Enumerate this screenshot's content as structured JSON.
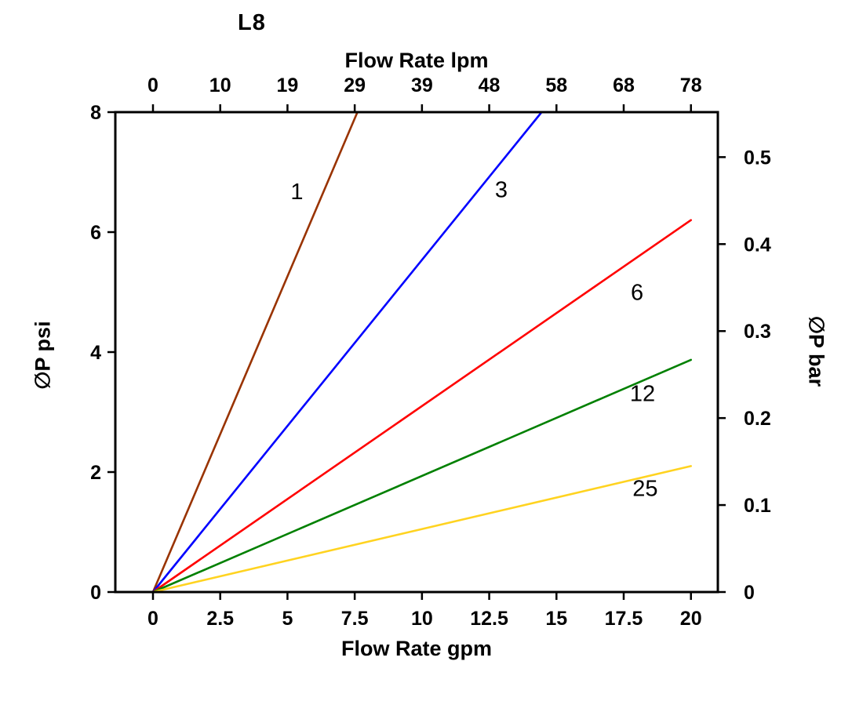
{
  "chart_data": {
    "type": "line",
    "title": "L8",
    "xlabel_top": "Flow Rate lpm",
    "xlabel_bottom": "Flow Rate gpm",
    "ylabel_left": "∅P psi",
    "ylabel_right": "∅P bar",
    "xlim": [
      -1.4,
      21.0
    ],
    "ylim": [
      0,
      8
    ],
    "grid": false,
    "legend": "none (inline labels on lines)",
    "x_ticks_gpm": [
      0,
      2.5,
      5,
      7.5,
      10,
      12.5,
      15,
      17.5,
      20
    ],
    "x_ticks_lpm": [
      0,
      10,
      19,
      29,
      39,
      48,
      58,
      68,
      78
    ],
    "y_ticks_psi": [
      0,
      2,
      4,
      6,
      8
    ],
    "y_ticks_bar": [
      0,
      0.1,
      0.2,
      0.3,
      0.4,
      0.5
    ],
    "psi_per_bar": 14.5,
    "axis_color": "#000000",
    "series": [
      {
        "name": "1",
        "color": "#993300",
        "points": [
          [
            0,
            0
          ],
          [
            7.6,
            8
          ]
        ],
        "label_at": [
          5.35,
          6.55
        ]
      },
      {
        "name": "3",
        "color": "#0000ff",
        "points": [
          [
            0,
            0
          ],
          [
            14.45,
            8
          ]
        ],
        "label_at": [
          12.95,
          6.58
        ]
      },
      {
        "name": "6",
        "color": "#ff0000",
        "points": [
          [
            0,
            0
          ],
          [
            20,
            6.2
          ]
        ],
        "label_at": [
          18.0,
          4.87
        ]
      },
      {
        "name": "12",
        "color": "#008000",
        "points": [
          [
            0,
            0
          ],
          [
            20,
            3.87
          ]
        ],
        "label_at": [
          18.2,
          3.18
        ]
      },
      {
        "name": "25",
        "color": "#ffd320",
        "points": [
          [
            0,
            0
          ],
          [
            20,
            2.1
          ]
        ],
        "label_at": [
          18.3,
          1.6
        ]
      }
    ]
  }
}
